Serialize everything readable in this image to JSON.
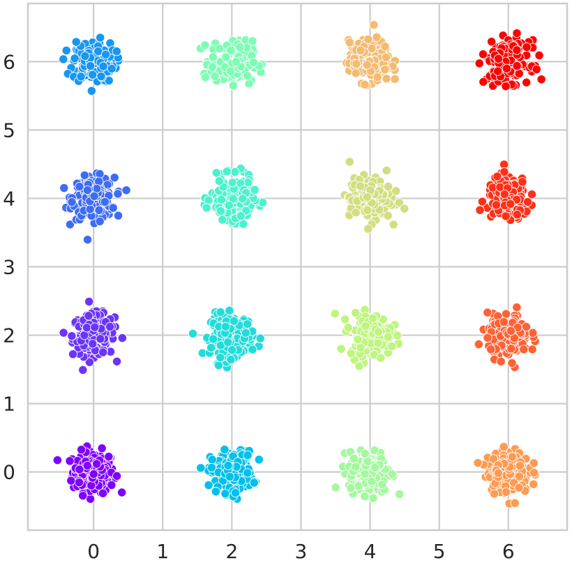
{
  "chart_data": {
    "type": "scatter",
    "title": "",
    "xlabel": "",
    "ylabel": "",
    "xlim": [
      -0.95,
      6.85
    ],
    "ylim": [
      -0.85,
      6.85
    ],
    "grid": true,
    "legend": "none",
    "x_ticks": [
      0,
      1,
      2,
      3,
      4,
      5,
      6
    ],
    "y_ticks": [
      0,
      1,
      2,
      3,
      4,
      5,
      6
    ],
    "x_tick_labels": [
      "0",
      "1",
      "2",
      "3",
      "4",
      "5",
      "6"
    ],
    "y_tick_labels": [
      "0",
      "1",
      "2",
      "3",
      "4",
      "5",
      "6"
    ],
    "cluster_spread_sd": 0.15,
    "points_per_cluster": 200,
    "clusters": [
      {
        "center": [
          0,
          0
        ],
        "color": "#7f00ff"
      },
      {
        "center": [
          0,
          2
        ],
        "color": "#6a35f9"
      },
      {
        "center": [
          0,
          4
        ],
        "color": "#3f6cf4"
      },
      {
        "center": [
          0,
          6
        ],
        "color": "#1996f3"
      },
      {
        "center": [
          2,
          0
        ],
        "color": "#00c0ec"
      },
      {
        "center": [
          2,
          2
        ],
        "color": "#22dcdb"
      },
      {
        "center": [
          2,
          4
        ],
        "color": "#4cf2ce"
      },
      {
        "center": [
          2,
          6
        ],
        "color": "#7dfdb4"
      },
      {
        "center": [
          4,
          0
        ],
        "color": "#a4f89f"
      },
      {
        "center": [
          4,
          2
        ],
        "color": "#bff57f"
      },
      {
        "center": [
          4,
          4
        ],
        "color": "#d4dd80"
      },
      {
        "center": [
          4,
          6
        ],
        "color": "#f4bb70"
      },
      {
        "center": [
          6,
          0
        ],
        "color": "#ff9a52"
      },
      {
        "center": [
          6,
          2
        ],
        "color": "#ff6234"
      },
      {
        "center": [
          6,
          4
        ],
        "color": "#ff3018"
      },
      {
        "center": [
          6,
          6
        ],
        "color": "#ff0000"
      }
    ]
  }
}
